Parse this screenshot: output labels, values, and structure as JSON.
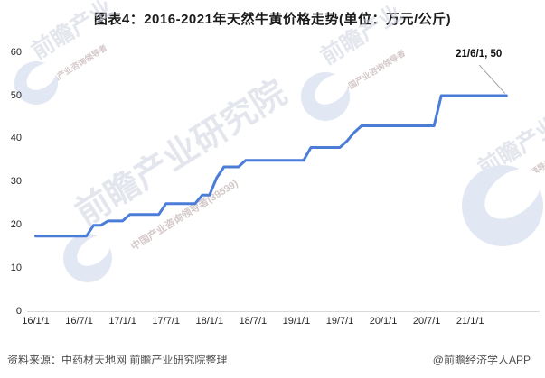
{
  "title": "图表4：2016-2021年天然牛黄价格走势(单位：万元/公斤)",
  "footer": {
    "source": "资料来源：中药材天地网 前瞻产业研究院整理",
    "credit": "@前瞻经济学人APP"
  },
  "watermark": {
    "brand_short": "前瞻产业",
    "brand_full": "前瞻产业研究院",
    "tagline": "中国产业咨询领导者",
    "code": "(39599)"
  },
  "colors": {
    "line": "#4b7dd8",
    "axis": "#d9d9d9",
    "leader": "#a8a8a8",
    "watermark_fill": "#e2e8f3",
    "watermark_text": "#cdd3de",
    "watermark_small_text": "#b8a4a4"
  },
  "chart_data": {
    "type": "line",
    "title": "2016-2021年天然牛黄价格走势",
    "unit": "万元/公斤",
    "ylim": [
      0,
      60
    ],
    "y_ticks": [
      0,
      10,
      20,
      30,
      40,
      50,
      60
    ],
    "x_tick_labels": [
      "16/1/1",
      "16/7/1",
      "17/1/1",
      "17/7/1",
      "18/1/1",
      "18/7/1",
      "19/1/1",
      "19/7/1",
      "20/1/1",
      "20/7/1",
      "21/1/1"
    ],
    "grid": false,
    "legend": false,
    "series": [
      {
        "name": "天然牛黄价格",
        "points": [
          [
            "16/1/1",
            17.5
          ],
          [
            "16/8/1",
            17.5
          ],
          [
            "16/9/1",
            20
          ],
          [
            "16/10/1",
            20
          ],
          [
            "16/11/1",
            21
          ],
          [
            "17/1/1",
            21
          ],
          [
            "17/2/1",
            22.5
          ],
          [
            "17/6/1",
            22.5
          ],
          [
            "17/7/1",
            25
          ],
          [
            "17/11/1",
            25
          ],
          [
            "17/12/1",
            27
          ],
          [
            "18/1/1",
            27
          ],
          [
            "18/2/1",
            31
          ],
          [
            "18/3/1",
            33.5
          ],
          [
            "18/5/1",
            33.5
          ],
          [
            "18/6/1",
            35
          ],
          [
            "19/2/1",
            35
          ],
          [
            "19/3/1",
            38
          ],
          [
            "19/7/1",
            38
          ],
          [
            "19/8/1",
            39.5
          ],
          [
            "19/9/1",
            41.5
          ],
          [
            "19/10/1",
            43
          ],
          [
            "20/8/1",
            43
          ],
          [
            "20/9/1",
            50
          ],
          [
            "21/6/1",
            50
          ]
        ]
      }
    ],
    "annotation": {
      "x": "21/6/1",
      "y": 50,
      "label": "21/6/1, 50"
    }
  }
}
